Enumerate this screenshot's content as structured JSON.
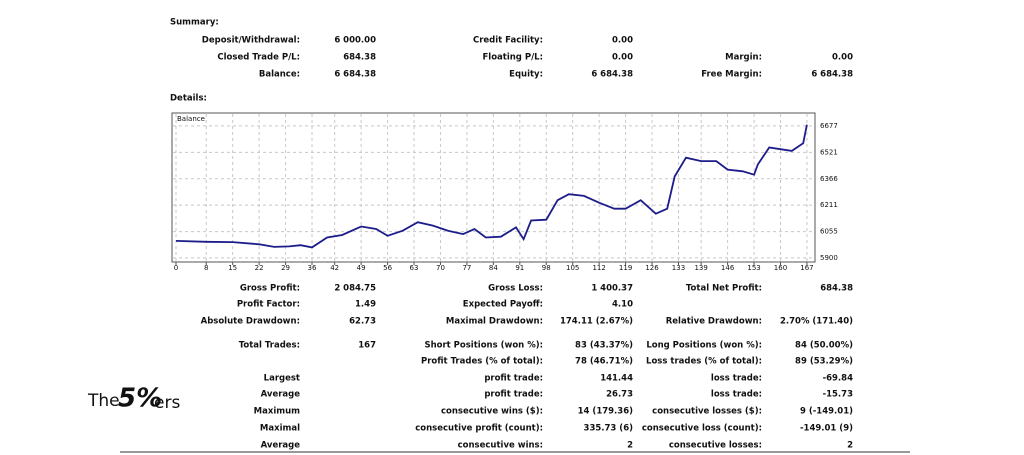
{
  "summary": {
    "title": "Summary:",
    "rows": [
      {
        "left": [
          "Deposit/Withdrawal:",
          "6 000.00"
        ],
        "middle": [
          "Credit Facility:",
          "0.00"
        ]
      },
      {
        "left": [
          "Closed Trade P/L:",
          "684.38"
        ],
        "middle": [
          "Floating P/L:",
          "0.00"
        ],
        "right": [
          "Margin:",
          "0.00"
        ]
      },
      {
        "left": [
          "Balance:",
          "6 684.38"
        ],
        "middle": [
          "Equity:",
          "6 684.38"
        ],
        "right": [
          "Free Margin:",
          "6 684.38"
        ]
      }
    ]
  },
  "details": {
    "title": "Details:"
  },
  "chart_data": {
    "type": "line",
    "x": [
      0,
      8,
      15,
      22,
      26,
      30,
      33,
      36,
      40,
      44,
      49,
      53,
      56,
      60,
      64,
      68,
      72,
      76,
      79,
      82,
      86,
      90,
      92,
      94,
      98,
      101,
      104,
      108,
      112,
      116,
      119,
      123,
      127,
      130,
      132,
      135,
      139,
      143,
      146,
      150,
      153,
      154,
      157,
      160,
      163,
      166,
      167
    ],
    "series": [
      {
        "name": "Balance",
        "color": "#1c1c8a",
        "values": [
          6000,
          5995,
          5993,
          5980,
          5965,
          5968,
          5975,
          5962,
          6020,
          6035,
          6085,
          6070,
          6030,
          6060,
          6110,
          6090,
          6060,
          6040,
          6070,
          6020,
          6025,
          6080,
          6010,
          6120,
          6125,
          6240,
          6275,
          6265,
          6225,
          6190,
          6190,
          6240,
          6160,
          6190,
          6380,
          6490,
          6470,
          6470,
          6420,
          6410,
          6390,
          6450,
          6550,
          6540,
          6530,
          6575,
          6684.38
        ]
      }
    ],
    "xlim": [
      0,
      169
    ],
    "ylim": [
      5876,
      6753
    ],
    "xticks": [
      0,
      8,
      15,
      22,
      29,
      36,
      42,
      49,
      56,
      63,
      70,
      77,
      84,
      91,
      98,
      105,
      112,
      119,
      126,
      133,
      139,
      146,
      153,
      160,
      167
    ],
    "yticks": [
      5900,
      6055,
      6211,
      6366,
      6521,
      6677
    ],
    "grid": true
  },
  "stats": {
    "rows": [
      {
        "left": [
          "Gross Profit:",
          "2 084.75"
        ],
        "middle": [
          "Gross Loss:",
          "1 400.37"
        ],
        "right": [
          "Total Net Profit:",
          "684.38"
        ]
      },
      {
        "left": [
          "Profit Factor:",
          "1.49"
        ],
        "middle": [
          "Expected Payoff:",
          "4.10"
        ]
      },
      {
        "left": [
          "Absolute Drawdown:",
          "62.73"
        ],
        "middle": [
          "Maximal Drawdown:",
          "174.11 (2.67%)"
        ],
        "right": [
          "Relative Drawdown:",
          "2.70% (171.40)"
        ]
      },
      {
        "left": [
          "Total Trades:",
          "167"
        ],
        "middle": [
          "Short Positions (won %):",
          "83 (43.37%)"
        ],
        "right": [
          "Long Positions (won %):",
          "84 (50.00%)"
        ]
      },
      {
        "middle": [
          "Profit Trades (% of total):",
          "78 (46.71%)"
        ],
        "right": [
          "Loss trades (% of total):",
          "89 (53.29%)"
        ]
      },
      {
        "left": [
          "Largest"
        ],
        "middle": [
          "profit trade:",
          "141.44"
        ],
        "right": [
          "loss trade:",
          "-69.84"
        ]
      },
      {
        "left": [
          "Average"
        ],
        "middle": [
          "profit trade:",
          "26.73"
        ],
        "right": [
          "loss trade:",
          "-15.73"
        ]
      },
      {
        "left": [
          "Maximum"
        ],
        "middle": [
          "consecutive wins ($):",
          "14 (179.36)"
        ],
        "right": [
          "consecutive losses ($):",
          "9 (-149.01)"
        ]
      },
      {
        "left": [
          "Maximal"
        ],
        "middle": [
          "consecutive profit (count):",
          "335.73 (6)"
        ],
        "right": [
          "consecutive loss (count):",
          "-149.01 (9)"
        ]
      },
      {
        "left": [
          "Average"
        ],
        "middle": [
          "consecutive wins:",
          "2"
        ],
        "right": [
          "consecutive losses:",
          "2"
        ]
      }
    ]
  },
  "logo": {
    "prefix": "The",
    "mark": "5%",
    "suffix": "ers"
  }
}
